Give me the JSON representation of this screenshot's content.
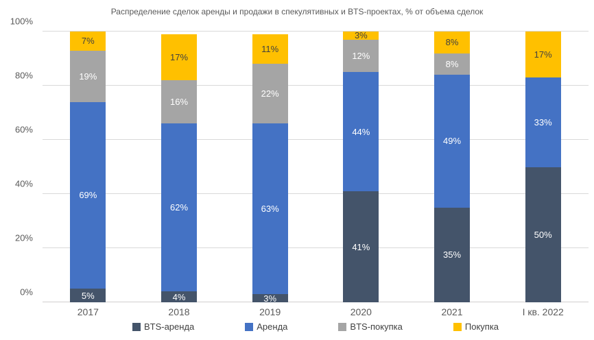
{
  "chart_data": {
    "type": "bar",
    "variant": "stacked-percent",
    "title": "Распределение сделок аренды и продажи в спекулятивных и BTS-проектах, % от объема сделок",
    "categories": [
      "2017",
      "2018",
      "2019",
      "2020",
      "2021",
      "I кв. 2022"
    ],
    "series": [
      {
        "name": "BTS-аренда",
        "color": "#44546A",
        "label_color": "#ffffff",
        "values": [
          5,
          4,
          3,
          41,
          35,
          50
        ]
      },
      {
        "name": "Аренда",
        "color": "#4472C4",
        "label_color": "#ffffff",
        "values": [
          69,
          62,
          63,
          44,
          49,
          33
        ]
      },
      {
        "name": "BTS-покупка",
        "color": "#A5A5A5",
        "label_color": "#ffffff",
        "values": [
          19,
          16,
          22,
          12,
          8,
          0
        ]
      },
      {
        "name": "Покупка",
        "color": "#FFC000",
        "label_color": "#404040",
        "values": [
          7,
          17,
          11,
          3,
          8,
          17
        ]
      }
    ],
    "ylabel": "",
    "xlabel": "",
    "ylim": [
      0,
      100
    ],
    "yticks": [
      {
        "value": 0,
        "label": "0%"
      },
      {
        "value": 20,
        "label": "20%"
      },
      {
        "value": 40,
        "label": "40%"
      },
      {
        "value": 60,
        "label": "60%"
      },
      {
        "value": 80,
        "label": "80%"
      },
      {
        "value": 100,
        "label": "100%"
      }
    ],
    "grid": true,
    "gridline_color": "#D9D9D9",
    "data_label_suffix": "%",
    "legend_position": "bottom"
  }
}
